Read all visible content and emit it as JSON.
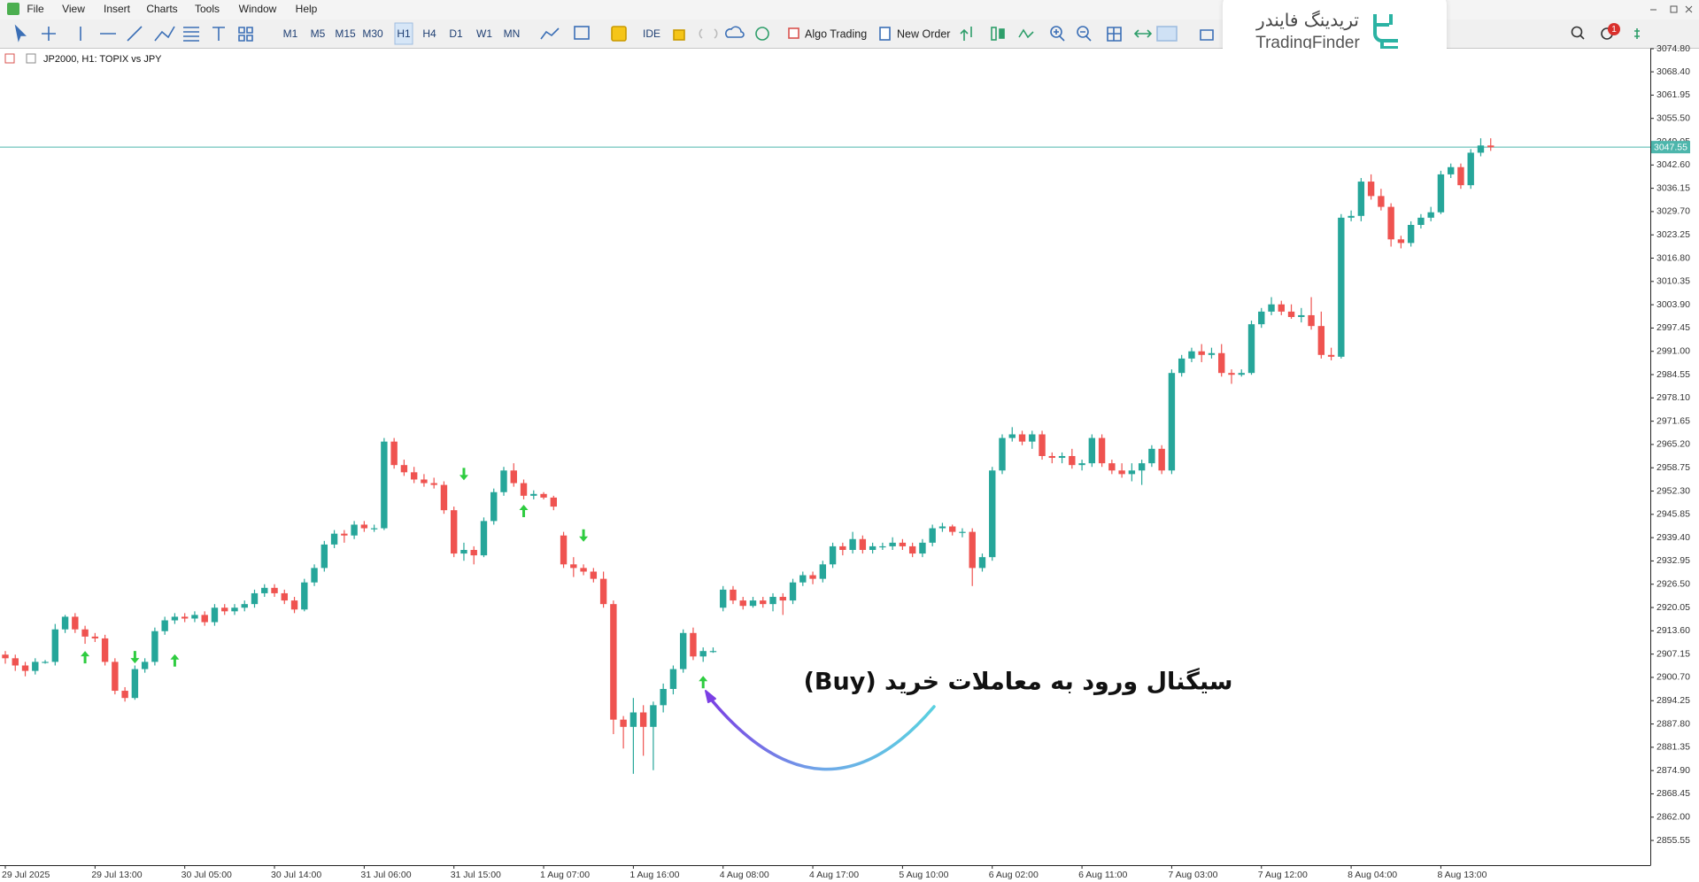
{
  "menu": [
    "File",
    "View",
    "Insert",
    "Charts",
    "Tools",
    "Window",
    "Help"
  ],
  "toolbar": {
    "timeframes": [
      "M1",
      "M5",
      "M15",
      "M30",
      "H1",
      "H4",
      "D1",
      "W1",
      "MN"
    ],
    "ide": "IDE",
    "algo": "Algo Trading",
    "new_order": "New Order"
  },
  "watermark": {
    "persian": "تریدینگ فایندر",
    "latin": "TradingFinder"
  },
  "notification_count": 1,
  "chart_data": {
    "type": "candlestick",
    "title": "JP2000, H1:  TOPIX vs JPY",
    "up_color": "#26a69a",
    "down_color": "#ef5350",
    "signal_color": "#2ecc40",
    "current_price_color": "#4db6ac",
    "categories": [
      "29 Jul 2025",
      null,
      null,
      null,
      null,
      null,
      null,
      null,
      null,
      "29 Jul 13:00",
      null,
      null,
      null,
      null,
      null,
      null,
      null,
      null,
      "30 Jul 05:00",
      null,
      null,
      null,
      null,
      null,
      null,
      null,
      null,
      "30 Jul 14:00",
      null,
      null,
      null,
      null,
      null,
      null,
      null,
      null,
      "31 Jul 06:00",
      null,
      null,
      null,
      null,
      null,
      null,
      null,
      null,
      "31 Jul 15:00",
      null,
      null,
      null,
      null,
      null,
      null,
      null,
      null,
      "1 Aug 07:00",
      null,
      null,
      null,
      null,
      null,
      null,
      null,
      null,
      "1 Aug 16:00",
      null,
      null,
      null,
      null,
      null,
      null,
      null,
      null,
      "4 Aug 08:00",
      null,
      null,
      null,
      null,
      null,
      null,
      null,
      null,
      "4 Aug 17:00",
      null,
      null,
      null,
      null,
      null,
      null,
      null,
      null,
      "5 Aug 10:00",
      null,
      null,
      null,
      null,
      null,
      null,
      null,
      null,
      "6 Aug 02:00",
      null,
      null,
      null,
      null,
      null,
      null,
      null,
      null,
      "6 Aug 11:00",
      null,
      null,
      null,
      null,
      null,
      null,
      null,
      null,
      "7 Aug 03:00",
      null,
      null,
      null,
      null,
      null,
      null,
      null,
      null,
      "7 Aug 12:00",
      null,
      null,
      null,
      null,
      null,
      null,
      null,
      null,
      "8 Aug 04:00",
      null,
      null,
      null,
      null,
      null,
      null,
      null,
      null,
      "8 Aug 13:00",
      null,
      null,
      null,
      null,
      null
    ],
    "ohlc": [
      [
        2907,
        2908,
        2904.5,
        2906
      ],
      [
        2906,
        2907,
        2902.5,
        2904
      ],
      [
        2904,
        2905,
        2901,
        2902.5
      ],
      [
        2902.5,
        2906,
        2901.5,
        2905
      ],
      [
        2905,
        2905.5,
        2904.5,
        2905
      ],
      [
        2905,
        2915.5,
        2904,
        2914
      ],
      [
        2914,
        2918,
        2913,
        2917.5
      ],
      [
        2917.5,
        2918.5,
        2913,
        2914
      ],
      [
        2914,
        2915,
        2910,
        2912
      ],
      [
        2912,
        2913,
        2910.5,
        2911.5
      ],
      [
        2911.5,
        2912.5,
        2904,
        2905
      ],
      [
        2905,
        2906,
        2896,
        2897
      ],
      [
        2897,
        2898,
        2894,
        2895
      ],
      [
        2895,
        2904,
        2894.5,
        2903
      ],
      [
        2903,
        2906,
        2902,
        2905
      ],
      [
        2905,
        2914.5,
        2904,
        2913.5
      ],
      [
        2913.5,
        2917.5,
        2912.5,
        2916.5
      ],
      [
        2916.5,
        2918.5,
        2915.5,
        2917.5
      ],
      [
        2917.5,
        2918.5,
        2916,
        2917
      ],
      [
        2917,
        2919,
        2916,
        2918
      ],
      [
        2918,
        2919,
        2915,
        2916
      ],
      [
        2916,
        2921,
        2915,
        2920
      ],
      [
        2920,
        2921,
        2918,
        2919
      ],
      [
        2919,
        2921,
        2918,
        2920
      ],
      [
        2920,
        2922,
        2919,
        2921
      ],
      [
        2921,
        2925,
        2920,
        2924
      ],
      [
        2924,
        2926.5,
        2923,
        2925.5
      ],
      [
        2925.5,
        2926.5,
        2923,
        2924
      ],
      [
        2924,
        2925,
        2921,
        2922
      ],
      [
        2922,
        2923,
        2918.5,
        2919.5
      ],
      [
        2919.5,
        2928,
        2919,
        2927
      ],
      [
        2927,
        2932,
        2926,
        2931
      ],
      [
        2931,
        2938.5,
        2930,
        2937.5
      ],
      [
        2937.5,
        2941.5,
        2936.5,
        2940.5
      ],
      [
        2940.5,
        2941.5,
        2938,
        2940
      ],
      [
        2940,
        2944,
        2939,
        2943
      ],
      [
        2943,
        2944,
        2941,
        2942
      ],
      [
        2942,
        2943,
        2941,
        2942
      ],
      [
        2942,
        2967,
        2941.5,
        2966
      ],
      [
        2966,
        2967,
        2958.5,
        2959.5
      ],
      [
        2959.5,
        2961,
        2956.5,
        2957.5
      ],
      [
        2957.5,
        2959,
        2954.5,
        2955.5
      ],
      [
        2955.5,
        2957,
        2953.5,
        2954.5
      ],
      [
        2954.5,
        2956,
        2953,
        2954
      ],
      [
        2954,
        2955,
        2946,
        2947
      ],
      [
        2947,
        2948,
        2934,
        2935
      ],
      [
        2935,
        2938,
        2933,
        2936
      ],
      [
        2936,
        2937,
        2932,
        2934.5
      ],
      [
        2934.5,
        2945,
        2934,
        2944
      ],
      [
        2944,
        2953,
        2943,
        2952
      ],
      [
        2952,
        2959,
        2951,
        2958
      ],
      [
        2958,
        2960,
        2953.5,
        2954.5
      ],
      [
        2954.5,
        2955.5,
        2950,
        2951
      ],
      [
        2951,
        2952.5,
        2950,
        2951.5
      ],
      [
        2951.5,
        2952,
        2950,
        2950.5
      ],
      [
        2950.5,
        2951,
        2947,
        2948
      ],
      [
        2940,
        2941,
        2931,
        2932
      ],
      [
        2932,
        2934,
        2928.5,
        2931
      ],
      [
        2931,
        2932,
        2929,
        2930
      ],
      [
        2930,
        2931,
        2927,
        2928
      ],
      [
        2928,
        2930,
        2920,
        2921
      ],
      [
        2921,
        2922,
        2885,
        2889
      ],
      [
        2889,
        2890,
        2881,
        2887
      ],
      [
        2887,
        2895,
        2874,
        2891
      ],
      [
        2891,
        2893,
        2879,
        2887
      ],
      [
        2887,
        2894,
        2875,
        2893
      ],
      [
        2893,
        2899,
        2891,
        2897.5
      ],
      [
        2897.5,
        2904,
        2896,
        2903
      ],
      [
        2903,
        2914,
        2902,
        2913
      ],
      [
        2913,
        2914.5,
        2905.5,
        2906.5
      ],
      [
        2906.5,
        2909,
        2905,
        2908
      ],
      [
        2908,
        2909,
        2907.5,
        2908
      ],
      [
        2920,
        2926,
        2919,
        2925
      ],
      [
        2925,
        2926,
        2921,
        2922
      ],
      [
        2922,
        2923,
        2919.5,
        2920.5
      ],
      [
        2920.5,
        2923,
        2920,
        2922
      ],
      [
        2922,
        2923,
        2920,
        2921
      ],
      [
        2921,
        2924,
        2919,
        2923
      ],
      [
        2923,
        2924,
        2918,
        2922
      ],
      [
        2922,
        2928,
        2921,
        2927
      ],
      [
        2927,
        2930,
        2926,
        2929
      ],
      [
        2929,
        2930,
        2926.5,
        2928
      ],
      [
        2928,
        2933,
        2927,
        2932
      ],
      [
        2932,
        2938,
        2931,
        2937
      ],
      [
        2937,
        2938,
        2934.5,
        2936
      ],
      [
        2936,
        2941,
        2935,
        2939
      ],
      [
        2939,
        2940,
        2935,
        2936
      ],
      [
        2936,
        2938,
        2935,
        2937
      ],
      [
        2937,
        2938,
        2936,
        2937
      ],
      [
        2937,
        2939.5,
        2936,
        2938
      ],
      [
        2938,
        2939,
        2936,
        2937
      ],
      [
        2937,
        2938,
        2934,
        2935
      ],
      [
        2935,
        2939,
        2934,
        2938
      ],
      [
        2938,
        2943,
        2937,
        2942
      ],
      [
        2942,
        2943.5,
        2941,
        2942.5
      ],
      [
        2942.5,
        2943,
        2940,
        2941
      ],
      [
        2941,
        2942,
        2939.5,
        2941
      ],
      [
        2941,
        2942,
        2926,
        2931
      ],
      [
        2931,
        2935,
        2930,
        2934
      ],
      [
        2934,
        2959,
        2933,
        2958
      ],
      [
        2958,
        2968,
        2957,
        2967
      ],
      [
        2967,
        2970,
        2966,
        2968
      ],
      [
        2968,
        2969,
        2965,
        2966
      ],
      [
        2966,
        2969,
        2964,
        2968
      ],
      [
        2968,
        2969,
        2961,
        2962
      ],
      [
        2962,
        2963,
        2960,
        2961.5
      ],
      [
        2961.5,
        2963,
        2960,
        2962
      ],
      [
        2962,
        2964,
        2958.5,
        2959.5
      ],
      [
        2959.5,
        2961,
        2958,
        2960
      ],
      [
        2960,
        2968,
        2959,
        2967
      ],
      [
        2967,
        2968,
        2959,
        2960
      ],
      [
        2960,
        2961,
        2957,
        2958
      ],
      [
        2958,
        2960,
        2956,
        2957
      ],
      [
        2957,
        2960,
        2955,
        2958
      ],
      [
        2958,
        2961,
        2954,
        2960
      ],
      [
        2960,
        2965,
        2959,
        2964
      ],
      [
        2964,
        2965,
        2957,
        2958
      ],
      [
        2958,
        2986,
        2957,
        2985
      ],
      [
        2985,
        2990,
        2984,
        2989
      ],
      [
        2989,
        2992,
        2988,
        2991
      ],
      [
        2991,
        2993,
        2988,
        2990
      ],
      [
        2990,
        2992,
        2989,
        2990.5
      ],
      [
        2990.5,
        2993,
        2984,
        2985
      ],
      [
        2985,
        2986,
        2982,
        2984.5
      ],
      [
        2984.5,
        2986,
        2984,
        2985
      ],
      [
        2985,
        2999.5,
        2984.5,
        2998.5
      ],
      [
        2998.5,
        3003,
        2997.5,
        3002
      ],
      [
        3002,
        3006,
        3001,
        3004
      ],
      [
        3004,
        3005,
        3001,
        3002
      ],
      [
        3002,
        3004,
        3000,
        3000.5
      ],
      [
        3000.5,
        3003,
        2999,
        3001
      ],
      [
        3001,
        3006,
        2997,
        2998
      ],
      [
        2998,
        3002,
        2989,
        2990
      ],
      [
        2990,
        2992,
        2988.5,
        2989.5
      ],
      [
        2989.5,
        3029,
        2989,
        3028
      ],
      [
        3028,
        3030,
        3027,
        3028.5
      ],
      [
        3028.5,
        3039,
        3027,
        3038
      ],
      [
        3038,
        3040,
        3033,
        3034
      ],
      [
        3034,
        3036,
        3030,
        3031
      ],
      [
        3031,
        3032,
        3020,
        3022
      ],
      [
        3022,
        3023,
        3019.5,
        3021
      ],
      [
        3021,
        3027,
        3020,
        3026
      ],
      [
        3026,
        3029,
        3025,
        3028
      ],
      [
        3028,
        3031,
        3027,
        3029.5
      ],
      [
        3029.5,
        3041,
        3029,
        3040
      ],
      [
        3040,
        3043,
        3039,
        3042
      ],
      [
        3042,
        3043,
        3036,
        3037
      ],
      [
        3037,
        3047,
        3036,
        3046
      ],
      [
        3046,
        3050,
        3045,
        3048
      ],
      [
        3048,
        3050,
        3046.5,
        3047.5
      ]
    ],
    "buy_signals": [
      {
        "x": 8,
        "price": 2906.3
      },
      {
        "x": 17,
        "price": 2905.4
      },
      {
        "x": 52,
        "price": 2946.8
      },
      {
        "x": 70,
        "price": 2899.4
      }
    ],
    "sell_signals": [
      {
        "x": 13,
        "price": 2906.3
      },
      {
        "x": 46,
        "price": 2957
      },
      {
        "x": 58,
        "price": 2940
      }
    ],
    "current_price": {
      "value": 3047.55,
      "label": "3047.55"
    },
    "ylim": [
      2848.7,
      3074.8
    ],
    "yticks": [
      {
        "value": 3074.8,
        "label": "3074.80"
      },
      {
        "value": 3068.4,
        "label": "3068.40"
      },
      3061.95,
      {
        "value": 3055.5,
        "label": "3055.50"
      },
      3049.05,
      {
        "value": 3042.6,
        "label": "3042.60"
      },
      3036.15,
      {
        "value": 3029.7,
        "label": "3029.70"
      },
      3023.25,
      {
        "value": 3016.8,
        "label": "3016.80"
      },
      3010.35,
      {
        "value": 3003.9,
        "label": "3003.90"
      },
      2997.45,
      {
        "value": 2991,
        "label": "2991.00"
      },
      2984.55,
      {
        "value": 2978.1,
        "label": "2978.10"
      },
      2971.65,
      {
        "value": 2965.2,
        "label": "2965.20"
      },
      2958.75,
      {
        "value": 2952.3,
        "label": "2952.30"
      },
      2945.85,
      {
        "value": 2939.4,
        "label": "2939.40"
      },
      2932.95,
      {
        "value": 2926.5,
        "label": "2926.50"
      },
      2920.05,
      {
        "value": 2913.6,
        "label": "2913.60"
      },
      2907.15,
      {
        "value": 2900.7,
        "label": "2900.70"
      },
      2894.25,
      {
        "value": 2887.8,
        "label": "2887.80"
      },
      2881.35,
      {
        "value": 2874.9,
        "label": "2874.90"
      },
      2868.45,
      {
        "value": 2862,
        "label": "2862.00"
      },
      2855.55
    ],
    "annotation": "سیگنال ورود به معاملات خرید (Buy)"
  }
}
